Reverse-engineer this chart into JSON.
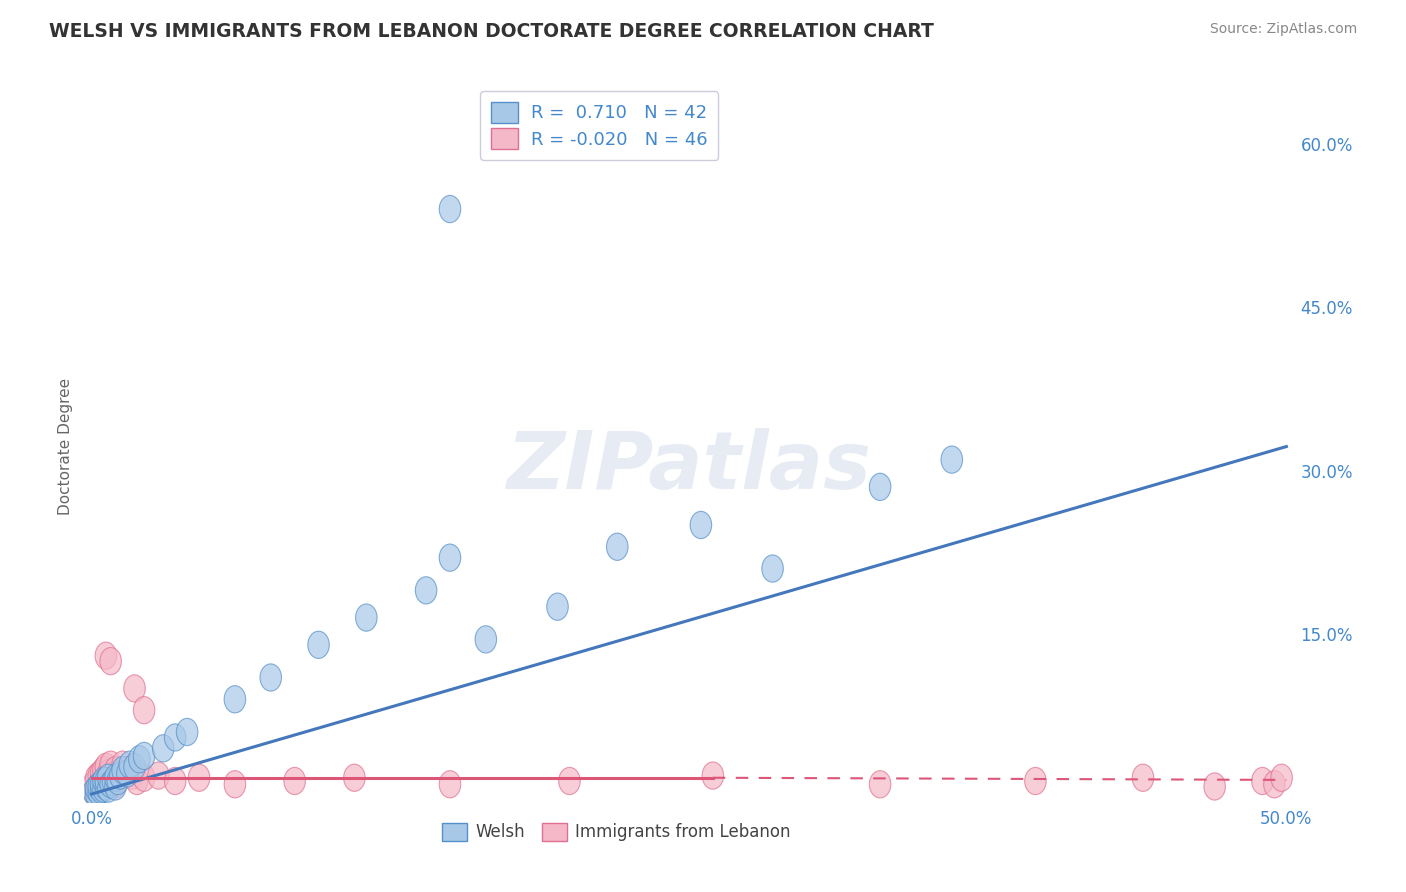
{
  "title": "WELSH VS IMMIGRANTS FROM LEBANON DOCTORATE DEGREE CORRELATION CHART",
  "source": "Source: ZipAtlas.com",
  "ylabel": "Doctorate Degree",
  "xlim": [
    0.0,
    0.5
  ],
  "ylim": [
    0.0,
    0.65
  ],
  "right_yticks": [
    0.6,
    0.45,
    0.3,
    0.15
  ],
  "y_tick_labels_right": [
    "60.0%",
    "45.0%",
    "30.0%",
    "15.0%"
  ],
  "welsh_color": "#a8c8e8",
  "welsh_edge_color": "#5590c8",
  "welsh_line_color": "#4477bb",
  "lebanon_color": "#f5b8c8",
  "lebanon_edge_color": "#e07090",
  "lebanon_line_color": "#dd5577",
  "background_color": "#ffffff",
  "grid_color": "#bbbbcc",
  "watermark": "ZIPatlas",
  "welsh_line_x0": 0.0,
  "welsh_line_y0": 0.003,
  "welsh_line_x1": 0.5,
  "welsh_line_y1": 0.322,
  "leb_line_solid_x0": 0.0,
  "leb_line_solid_y0": 0.018,
  "leb_line_solid_x1": 0.26,
  "leb_line_solid_y1": 0.018,
  "leb_line_dash_x0": 0.26,
  "leb_line_dash_y0": 0.018,
  "leb_line_dash_x1": 0.5,
  "leb_line_dash_y1": 0.016,
  "welsh_x": [
    0.001,
    0.002,
    0.002,
    0.003,
    0.003,
    0.004,
    0.004,
    0.005,
    0.005,
    0.006,
    0.006,
    0.007,
    0.007,
    0.008,
    0.009,
    0.01,
    0.01,
    0.011,
    0.012,
    0.013,
    0.015,
    0.016,
    0.018,
    0.02,
    0.022,
    0.03,
    0.035,
    0.04,
    0.06,
    0.075,
    0.095,
    0.115,
    0.14,
    0.165,
    0.195,
    0.22,
    0.255,
    0.285,
    0.15,
    0.33,
    0.36,
    0.15
  ],
  "welsh_y": [
    0.005,
    0.003,
    0.008,
    0.005,
    0.01,
    0.007,
    0.012,
    0.008,
    0.015,
    0.01,
    0.015,
    0.008,
    0.018,
    0.012,
    0.014,
    0.01,
    0.018,
    0.015,
    0.02,
    0.025,
    0.022,
    0.03,
    0.028,
    0.035,
    0.038,
    0.045,
    0.055,
    0.06,
    0.09,
    0.11,
    0.14,
    0.165,
    0.19,
    0.145,
    0.175,
    0.23,
    0.25,
    0.21,
    0.22,
    0.285,
    0.31,
    0.54
  ],
  "lebanon_x": [
    0.001,
    0.001,
    0.002,
    0.002,
    0.003,
    0.003,
    0.004,
    0.004,
    0.005,
    0.005,
    0.006,
    0.006,
    0.007,
    0.007,
    0.008,
    0.008,
    0.009,
    0.01,
    0.01,
    0.011,
    0.012,
    0.013,
    0.015,
    0.017,
    0.019,
    0.022,
    0.028,
    0.035,
    0.045,
    0.06,
    0.085,
    0.11,
    0.15,
    0.2,
    0.26,
    0.33,
    0.395,
    0.44,
    0.47,
    0.49,
    0.495,
    0.498,
    0.006,
    0.008,
    0.018,
    0.022
  ],
  "lebanon_y": [
    0.005,
    0.012,
    0.008,
    0.018,
    0.01,
    0.02,
    0.015,
    0.022,
    0.01,
    0.025,
    0.018,
    0.028,
    0.012,
    0.022,
    0.015,
    0.03,
    0.02,
    0.012,
    0.025,
    0.018,
    0.022,
    0.03,
    0.025,
    0.02,
    0.015,
    0.018,
    0.02,
    0.015,
    0.018,
    0.012,
    0.015,
    0.018,
    0.012,
    0.015,
    0.02,
    0.012,
    0.015,
    0.018,
    0.01,
    0.015,
    0.012,
    0.018,
    0.13,
    0.125,
    0.1,
    0.08
  ]
}
